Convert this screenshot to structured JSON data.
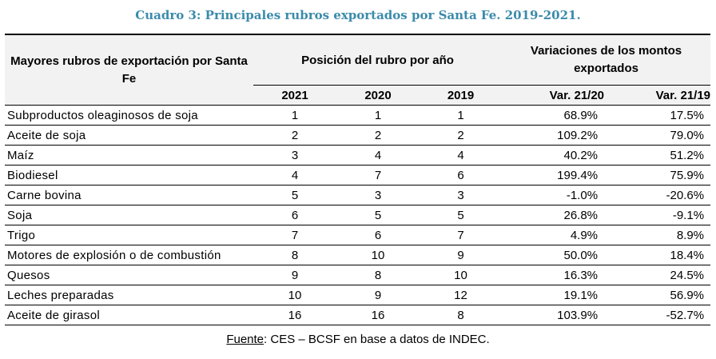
{
  "title": "Cuadro 3: Principales rubros exportados por Santa Fe. 2019-2021.",
  "table": {
    "header_rubro": "Mayores rubros de exportación por Santa Fe",
    "header_position": "Posición del rubro por año",
    "header_variations": "Variaciones de los montos exportados",
    "sub_headers": [
      "2021",
      "2020",
      "2019",
      "Var. 21/20",
      "Var. 21/19"
    ],
    "rows": [
      {
        "name": "Subproductos oleaginosos de soja",
        "p2021": "1",
        "p2020": "1",
        "p2019": "1",
        "var2120": "68.9%",
        "var2119": "17.5%"
      },
      {
        "name": "Aceite de soja",
        "p2021": "2",
        "p2020": "2",
        "p2019": "2",
        "var2120": "109.2%",
        "var2119": "79.0%"
      },
      {
        "name": "Maíz",
        "p2021": "3",
        "p2020": "4",
        "p2019": "4",
        "var2120": "40.2%",
        "var2119": "51.2%"
      },
      {
        "name": "Biodiesel",
        "p2021": "4",
        "p2020": "7",
        "p2019": "6",
        "var2120": "199.4%",
        "var2119": "75.9%"
      },
      {
        "name": "Carne bovina",
        "p2021": "5",
        "p2020": "3",
        "p2019": "3",
        "var2120": "-1.0%",
        "var2119": "-20.6%"
      },
      {
        "name": "Soja",
        "p2021": "6",
        "p2020": "5",
        "p2019": "5",
        "var2120": "26.8%",
        "var2119": "-9.1%"
      },
      {
        "name": "Trigo",
        "p2021": "7",
        "p2020": "6",
        "p2019": "7",
        "var2120": "4.9%",
        "var2119": "8.9%"
      },
      {
        "name": "Motores de explosión o de combustión",
        "p2021": "8",
        "p2020": "10",
        "p2019": "9",
        "var2120": "50.0%",
        "var2119": "18.4%"
      },
      {
        "name": "Quesos",
        "p2021": "9",
        "p2020": "8",
        "p2019": "10",
        "var2120": "16.3%",
        "var2119": "24.5%"
      },
      {
        "name": "Leches preparadas",
        "p2021": "10",
        "p2020": "9",
        "p2019": "12",
        "var2120": "19.1%",
        "var2119": "56.9%"
      },
      {
        "name": "Aceite de girasol",
        "p2021": "16",
        "p2020": "16",
        "p2019": "8",
        "var2120": "103.9%",
        "var2119": "-52.7%"
      }
    ]
  },
  "footer": {
    "source_label": "Fuente",
    "source_text": ": CES – BCSF en base a datos de INDEC."
  }
}
